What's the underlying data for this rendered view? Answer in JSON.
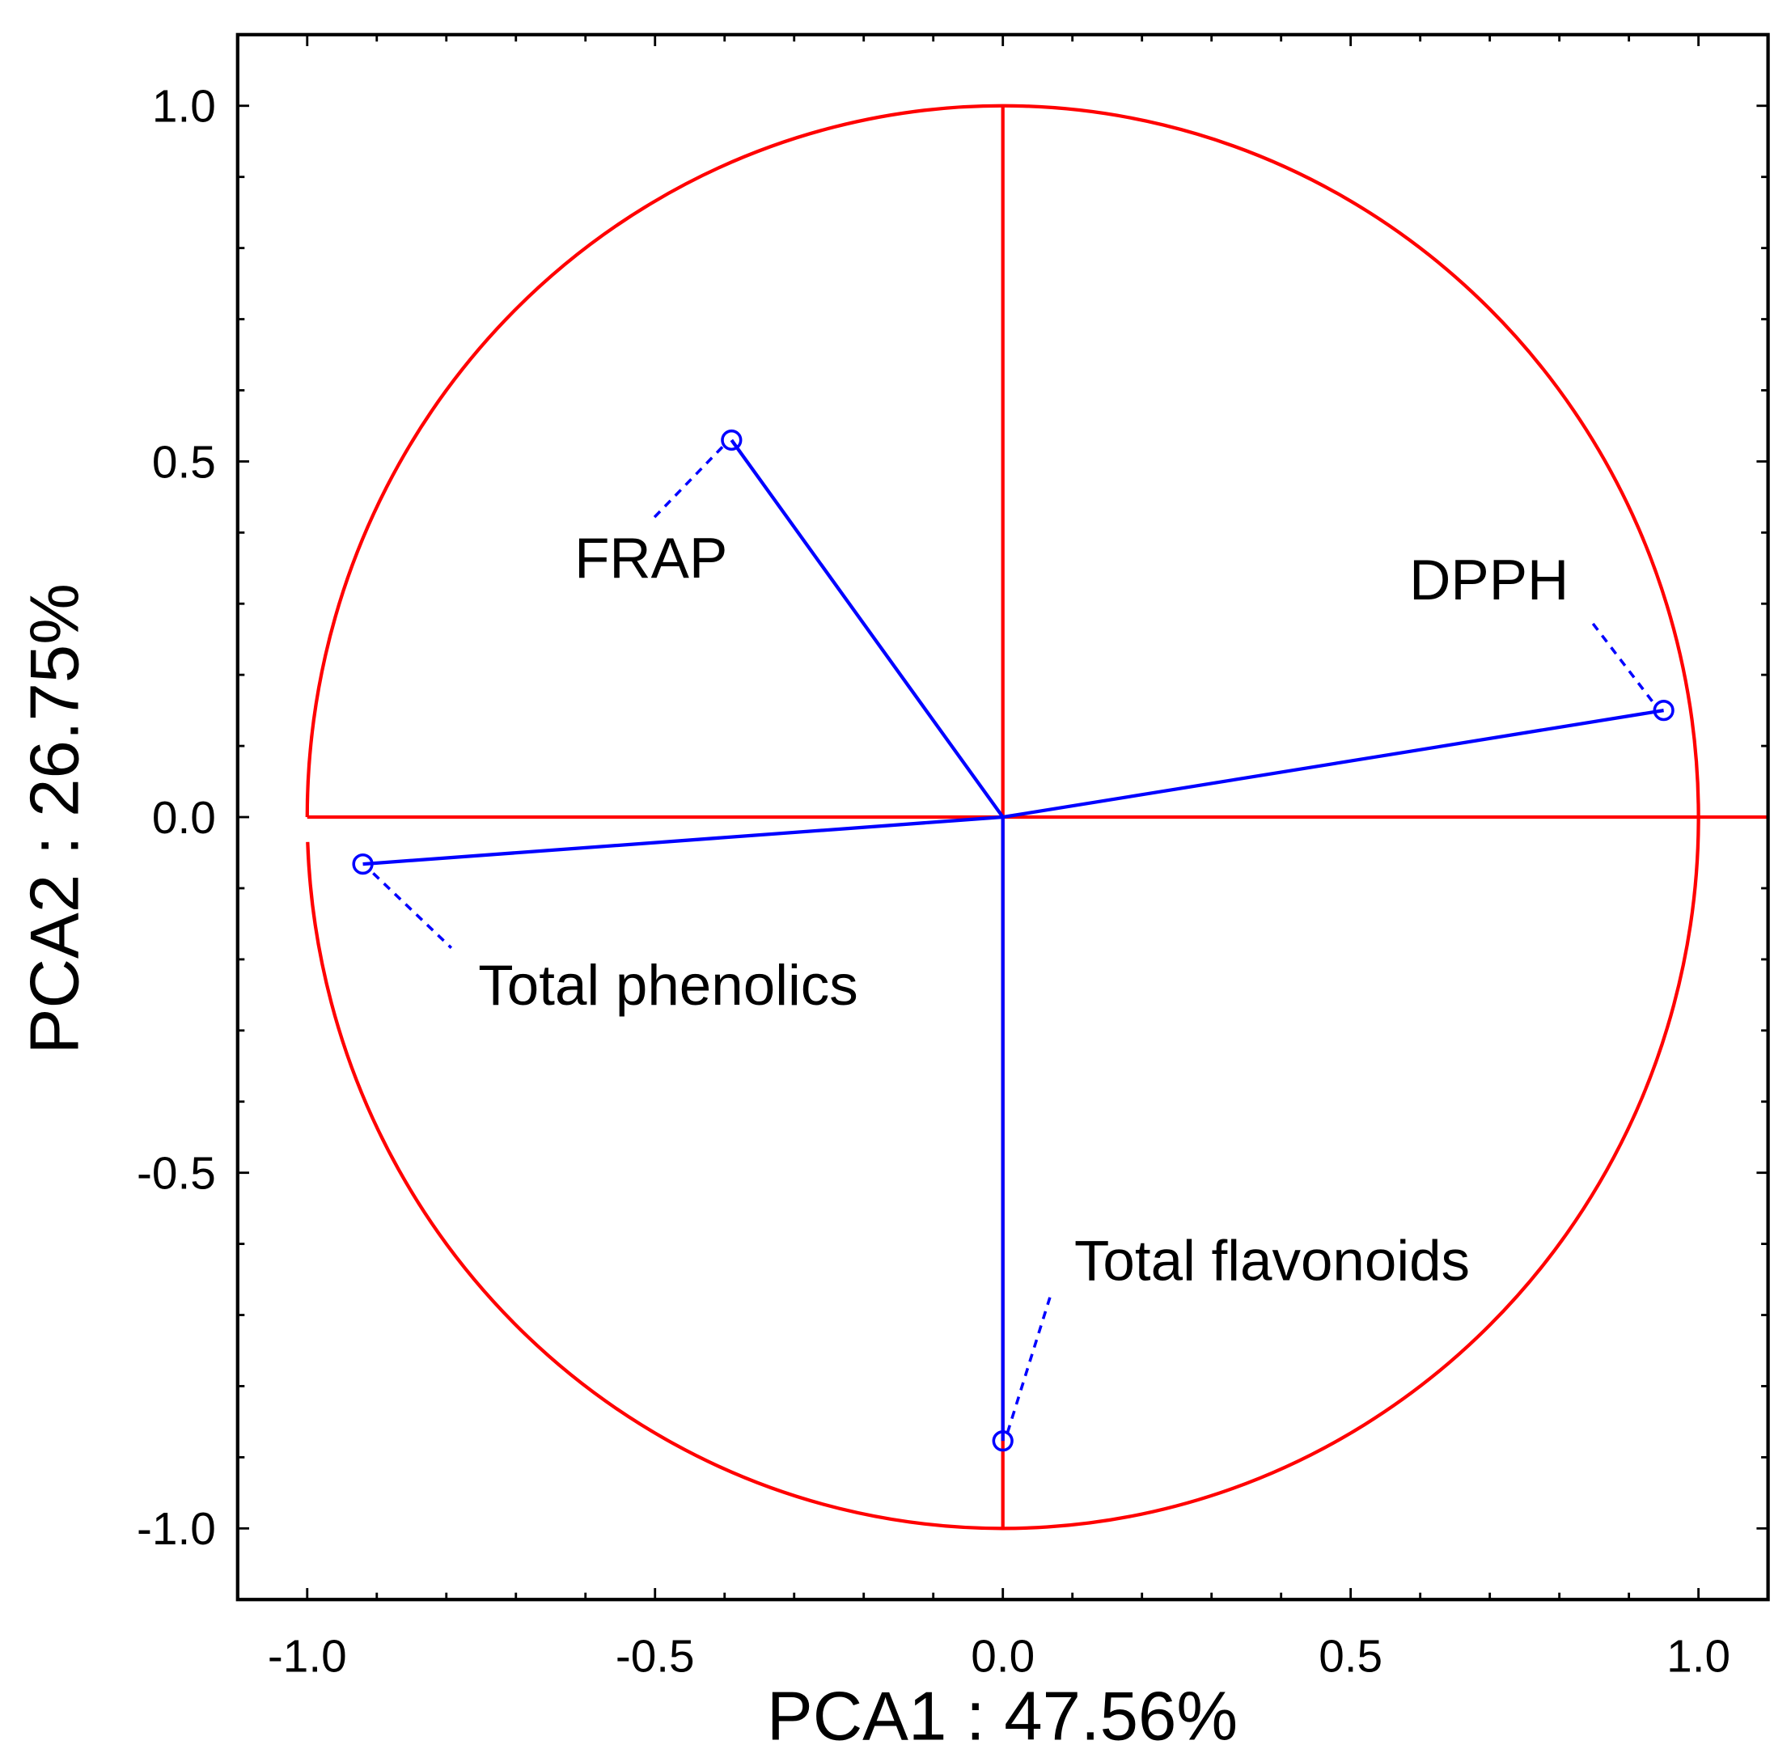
{
  "chart_data": {
    "type": "scatter",
    "subtype": "pca-correlation-circle",
    "xlabel": "PCA1 : 47.56%",
    "ylabel": "PCA2 : 26.75%",
    "xlim": [
      -1.1,
      1.1
    ],
    "ylim": [
      -1.1,
      1.1
    ],
    "xticks": [
      "-1.0",
      "-0.5",
      "0.0",
      "0.5",
      "1.0"
    ],
    "yticks": [
      "1.0",
      "0.5",
      "0.0",
      "-0.5",
      "-1.0"
    ],
    "grid": false,
    "points": [
      {
        "label": "FRAP",
        "x": -0.39,
        "y": 0.53
      },
      {
        "label": "DPPH",
        "x": 0.95,
        "y": 0.15
      },
      {
        "label": "Total phenolics",
        "x": -0.92,
        "y": -0.066
      },
      {
        "label": "Total flavonoids",
        "x": 0.0,
        "y": -0.877
      }
    ],
    "colors": {
      "circle": "#ff0000",
      "vectors": "#0000ff",
      "axes_frame": "#000000"
    }
  }
}
